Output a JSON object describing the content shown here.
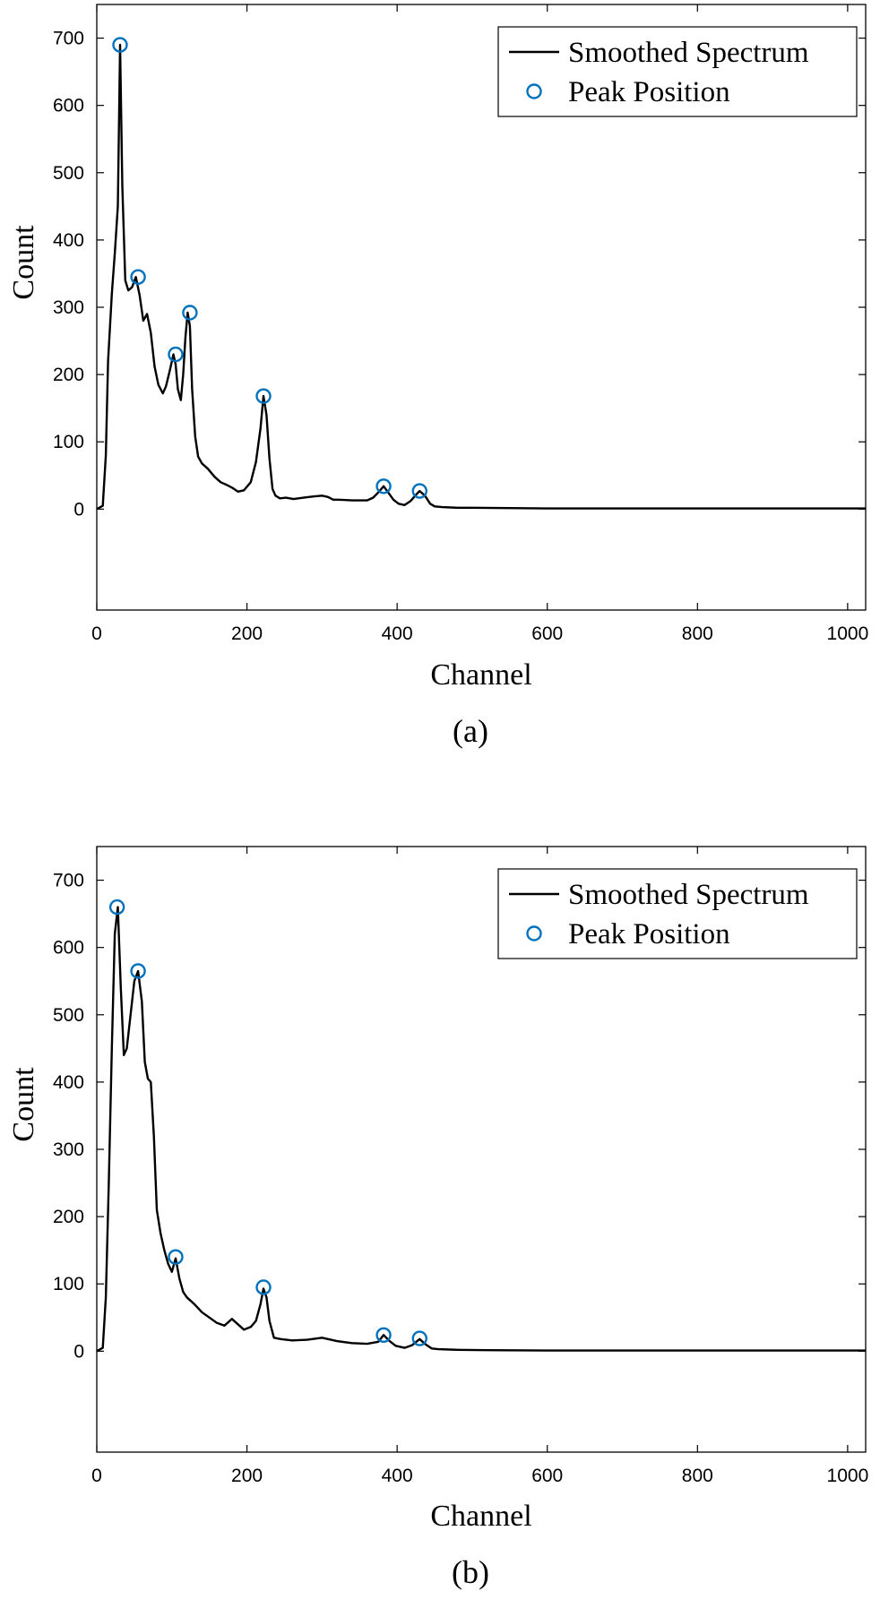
{
  "chart_data": [
    {
      "type": "line",
      "panel_label": "(a)",
      "xlabel": "Channel",
      "ylabel": "Count",
      "xlim": [
        0,
        1024
      ],
      "ylim": [
        -150,
        750
      ],
      "xticks": [
        0,
        200,
        400,
        600,
        800,
        1000
      ],
      "yticks": [
        0,
        100,
        200,
        300,
        400,
        500,
        600,
        700
      ],
      "legend_position": "top-right",
      "grid": false,
      "line_color": "#000000",
      "marker_color": "#0072BD",
      "series": [
        {
          "name": "Smoothed Spectrum",
          "style": "line",
          "x": [
            0,
            8,
            12,
            15,
            20,
            24,
            28,
            31,
            34,
            38,
            42,
            47,
            52,
            57,
            62,
            67,
            72,
            77,
            82,
            88,
            92,
            97,
            102,
            105,
            108,
            112,
            115,
            118,
            121,
            124,
            127,
            131,
            135,
            140,
            148,
            157,
            165,
            173,
            180,
            188,
            196,
            205,
            212,
            218,
            222,
            226,
            230,
            234,
            238,
            244,
            252,
            262,
            275,
            290,
            300,
            308,
            315,
            322,
            340,
            360,
            368,
            375,
            382,
            388,
            395,
            402,
            410,
            418,
            424,
            430,
            437,
            444,
            450,
            460,
            480,
            500,
            550,
            600,
            700,
            800,
            900,
            1000,
            1024
          ],
          "y": [
            0,
            5,
            80,
            220,
            320,
            380,
            450,
            690,
            480,
            340,
            325,
            330,
            345,
            318,
            280,
            290,
            262,
            212,
            185,
            172,
            182,
            205,
            230,
            215,
            178,
            162,
            200,
            255,
            292,
            272,
            178,
            108,
            78,
            68,
            60,
            48,
            40,
            36,
            32,
            26,
            28,
            40,
            70,
            120,
            168,
            140,
            75,
            30,
            20,
            16,
            17,
            15,
            17,
            19,
            20,
            18,
            14,
            14,
            13,
            13,
            17,
            25,
            34,
            25,
            14,
            8,
            6,
            12,
            20,
            27,
            20,
            8,
            4,
            3,
            2,
            2,
            1.5,
            1,
            1,
            1,
            1,
            1,
            1
          ]
        },
        {
          "name": "Peak Position",
          "style": "marker",
          "x": [
            31,
            55,
            105,
            124,
            222,
            382,
            430
          ],
          "y": [
            690,
            345,
            230,
            292,
            168,
            34,
            27
          ]
        }
      ]
    },
    {
      "type": "line",
      "panel_label": "(b)",
      "xlabel": "Channel",
      "ylabel": "Count",
      "xlim": [
        0,
        1024
      ],
      "ylim": [
        -150,
        750
      ],
      "xticks": [
        0,
        200,
        400,
        600,
        800,
        1000
      ],
      "yticks": [
        0,
        100,
        200,
        300,
        400,
        500,
        600,
        700
      ],
      "legend_position": "top-right",
      "grid": false,
      "line_color": "#000000",
      "marker_color": "#0072BD",
      "series": [
        {
          "name": "Smoothed Spectrum",
          "style": "line",
          "x": [
            0,
            8,
            12,
            16,
            20,
            24,
            28,
            32,
            36,
            40,
            45,
            50,
            55,
            60,
            64,
            68,
            72,
            76,
            80,
            85,
            90,
            95,
            100,
            105,
            110,
            115,
            120,
            130,
            140,
            150,
            160,
            170,
            180,
            188,
            196,
            205,
            212,
            218,
            222,
            226,
            230,
            236,
            245,
            260,
            280,
            300,
            320,
            340,
            360,
            375,
            382,
            390,
            398,
            410,
            420,
            430,
            438,
            446,
            455,
            480,
            520,
            600,
            700,
            800,
            900,
            1000,
            1024
          ],
          "y": [
            0,
            5,
            80,
            250,
            450,
            620,
            660,
            540,
            440,
            450,
            500,
            550,
            565,
            520,
            430,
            405,
            400,
            320,
            210,
            175,
            150,
            130,
            118,
            138,
            108,
            88,
            80,
            70,
            58,
            50,
            42,
            38,
            48,
            40,
            32,
            36,
            45,
            70,
            93,
            80,
            45,
            20,
            18,
            16,
            17,
            20,
            15,
            12,
            11,
            14,
            24,
            15,
            8,
            5,
            9,
            18,
            10,
            4,
            3,
            2,
            1.5,
            1,
            1,
            1,
            1,
            1,
            1
          ]
        },
        {
          "name": "Peak Position",
          "style": "marker",
          "x": [
            27,
            55,
            105,
            222,
            382,
            430
          ],
          "y": [
            660,
            565,
            140,
            95,
            24,
            19
          ]
        }
      ]
    }
  ]
}
